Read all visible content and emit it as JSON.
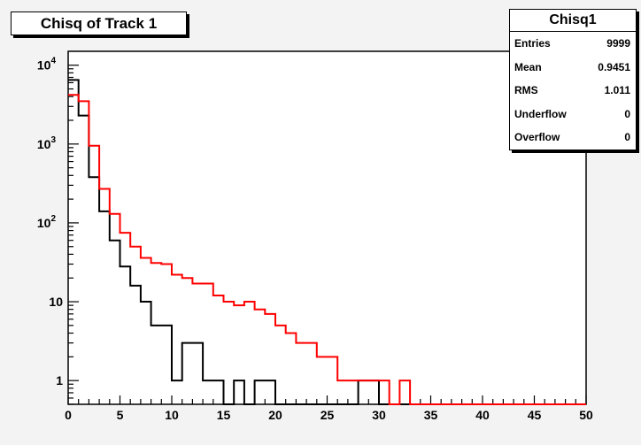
{
  "title": "Chisq of Track 1",
  "stats": {
    "name": "Chisq1",
    "rows": [
      {
        "label": "Entries",
        "value": "9999"
      },
      {
        "label": "Mean",
        "value": "0.9451"
      },
      {
        "label": "RMS",
        "value": "1.011"
      },
      {
        "label": "Underflow",
        "value": "0"
      },
      {
        "label": "Overflow",
        "value": "0"
      }
    ]
  },
  "chart_data": {
    "type": "histogram",
    "xlim": [
      0,
      50
    ],
    "ylim": [
      0.5,
      15000
    ],
    "yscale": "log",
    "bin_width": 1,
    "x_ticks": [
      0,
      5,
      10,
      15,
      20,
      25,
      30,
      35,
      40,
      45,
      50
    ],
    "y_ticks": [
      {
        "value": 1,
        "label": "1"
      },
      {
        "value": 10,
        "label": "10"
      },
      {
        "value": 100,
        "label": "10",
        "exp": "2"
      },
      {
        "value": 1000,
        "label": "10",
        "exp": "3"
      },
      {
        "value": 10000,
        "label": "10",
        "exp": "4"
      }
    ],
    "series": [
      {
        "color": "#000000",
        "values": [
          6500,
          2300,
          380,
          140,
          60,
          28,
          16,
          10,
          5,
          5,
          1,
          3,
          3,
          1,
          1,
          0,
          1,
          0,
          1,
          1,
          0,
          0,
          0,
          0,
          0,
          0,
          0,
          0,
          1,
          1,
          0,
          0,
          0,
          0,
          0,
          0,
          0,
          0,
          0,
          0,
          0,
          0,
          0,
          0,
          0,
          0,
          0,
          0,
          0,
          0
        ]
      },
      {
        "color": "#ff0000",
        "values": [
          4200,
          3500,
          950,
          270,
          130,
          75,
          50,
          36,
          31,
          30,
          22,
          20,
          17,
          17,
          12,
          10,
          9,
          10,
          8,
          7,
          5,
          4,
          3,
          3,
          2,
          2,
          1,
          1,
          1,
          1,
          1,
          0,
          1,
          0,
          0,
          0,
          0,
          0,
          0,
          0,
          0,
          0,
          0,
          0,
          0,
          0,
          0,
          0,
          0,
          0
        ]
      }
    ]
  }
}
